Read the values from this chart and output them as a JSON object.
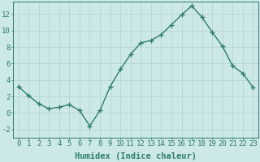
{
  "x": [
    0,
    1,
    2,
    3,
    4,
    5,
    6,
    7,
    8,
    9,
    10,
    11,
    12,
    13,
    14,
    15,
    16,
    17,
    18,
    19,
    20,
    21,
    22,
    23
  ],
  "y": [
    3.2,
    2.1,
    1.1,
    0.5,
    0.7,
    1.0,
    0.3,
    -1.6,
    0.3,
    3.2,
    5.3,
    7.1,
    8.5,
    8.8,
    9.5,
    10.7,
    11.9,
    13.0,
    11.6,
    9.8,
    8.1,
    5.7,
    4.8,
    3.1
  ],
  "line_color": "#2d7c6e",
  "marker": "+",
  "marker_size": 4,
  "bg_color": "#cde8e8",
  "grid_color": "#b5d5d5",
  "xlabel": "Humidex (Indice chaleur)",
  "xlim": [
    -0.5,
    23.5
  ],
  "ylim": [
    -3.0,
    13.5
  ],
  "yticks": [
    -2,
    0,
    2,
    4,
    6,
    8,
    10,
    12
  ],
  "xlabel_fontsize": 7.5,
  "tick_fontsize": 6.5,
  "line_width": 1.0
}
